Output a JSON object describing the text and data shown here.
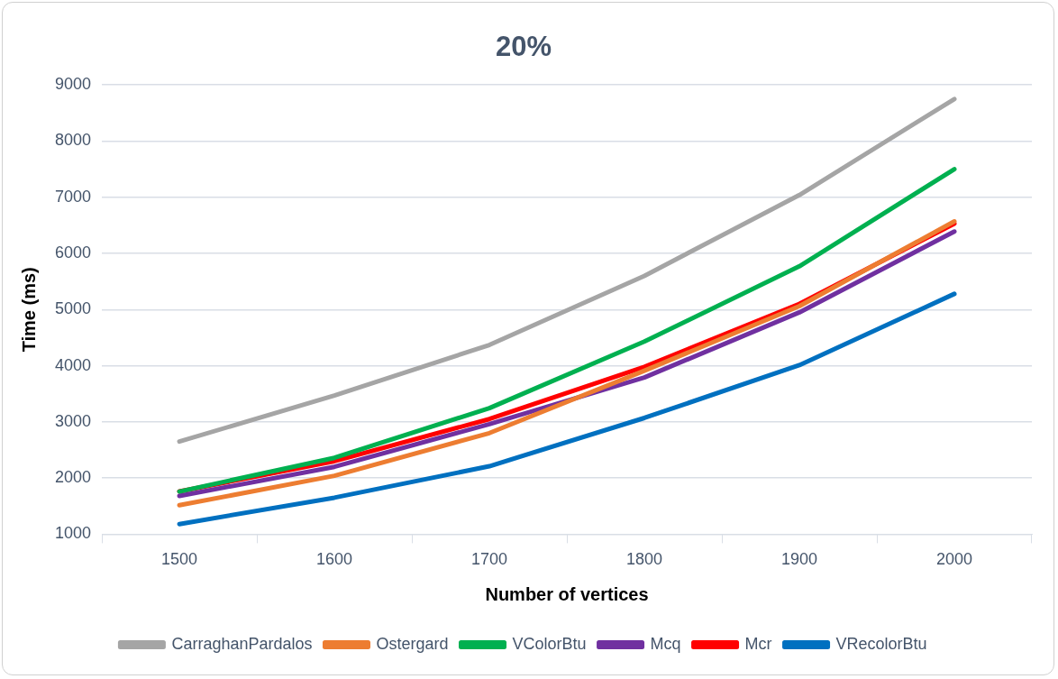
{
  "chart_data": {
    "type": "line",
    "title": "20%",
    "xlabel": "Number of vertices",
    "ylabel": "Time (ms)",
    "categories": [
      "1500",
      "1600",
      "1700",
      "1800",
      "1900",
      "2000"
    ],
    "ylim": [
      1000,
      9000
    ],
    "yticks": [
      1000,
      2000,
      3000,
      4000,
      5000,
      6000,
      7000,
      8000,
      9000
    ],
    "grid": "y",
    "legend": "bottom",
    "marker": "none",
    "line_style": "solid",
    "series": [
      {
        "name": "CarraghanPardalos",
        "color": "#a5a5a5",
        "values": [
          2650,
          3470,
          4370,
          5600,
          7040,
          8750
        ]
      },
      {
        "name": "Ostergard",
        "color": "#ed7d31",
        "values": [
          1515,
          2040,
          2800,
          3910,
          5060,
          6570
        ]
      },
      {
        "name": "VColorBtu",
        "color": "#00b050",
        "values": [
          1760,
          2360,
          3245,
          4430,
          5770,
          7500
        ]
      },
      {
        "name": "Mcq",
        "color": "#7030a0",
        "values": [
          1680,
          2200,
          2960,
          3790,
          4950,
          6390
        ]
      },
      {
        "name": "Mcr",
        "color": "#ff0000",
        "values": [
          1760,
          2300,
          3050,
          3980,
          5100,
          6530
        ]
      },
      {
        "name": "VRecolorBtu",
        "color": "#0070c0",
        "values": [
          1180,
          1650,
          2210,
          3070,
          4010,
          5280
        ]
      }
    ]
  }
}
